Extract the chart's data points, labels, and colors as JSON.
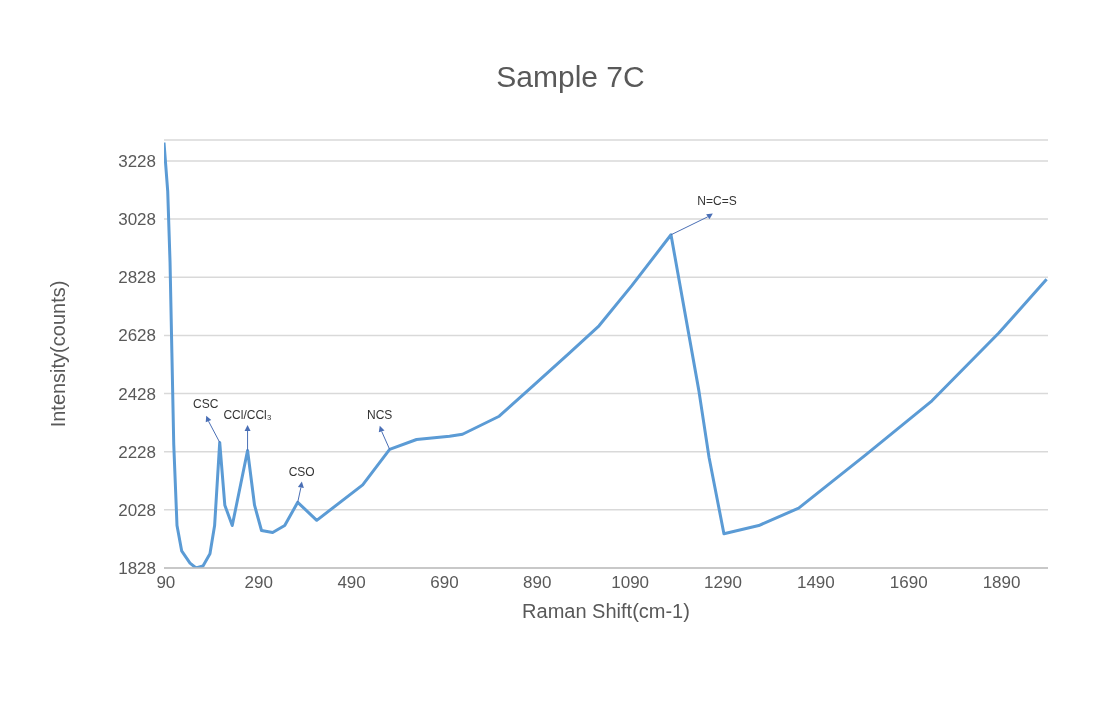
{
  "chart_data": {
    "type": "line",
    "title": "Sample 7C",
    "xlabel": "Raman Shift(cm-1)",
    "ylabel": "Intensity(counts)",
    "x": [
      86,
      94,
      99,
      103,
      107,
      114,
      124,
      142,
      155,
      170,
      185,
      195,
      206,
      217,
      233,
      266,
      281,
      296,
      320,
      346,
      374,
      415,
      514,
      572,
      630,
      701,
      729,
      808,
      879,
      959,
      1023,
      1094,
      1178,
      1238,
      1260,
      1292,
      1367,
      1453,
      1598,
      1740,
      1884,
      1987
    ],
    "values": [
      3291,
      3124,
      2880,
      2567,
      2253,
      1974,
      1887,
      1845,
      1828,
      1835,
      1877,
      1974,
      2260,
      2044,
      1974,
      2232,
      2044,
      1957,
      1950,
      1974,
      2054,
      1992,
      2114,
      2236,
      2270,
      2281,
      2288,
      2350,
      2452,
      2567,
      2661,
      2800,
      2974,
      2438,
      2208,
      1946,
      1974,
      2034,
      2218,
      2403,
      2636,
      2821
    ],
    "color": "#5b9bd5",
    "xlim": [
      86,
      1990
    ],
    "xticks": [
      90,
      290,
      490,
      690,
      890,
      1090,
      1290,
      1490,
      1690,
      1890
    ],
    "ylim": [
      1828,
      3300
    ],
    "yticks": [
      1828,
      2028,
      2228,
      2428,
      2628,
      2828,
      3028,
      3228
    ],
    "grid": "y",
    "marker": "none",
    "line_style": "solid",
    "legend": false,
    "annotations": [
      {
        "text": "CSC",
        "x": 206,
        "y": 2260
      },
      {
        "text": "CCl/CCl₃",
        "x": 266,
        "y": 2232
      },
      {
        "text": "CSO",
        "x": 374,
        "y": 2054
      },
      {
        "text": "NCS",
        "x": 572,
        "y": 2236
      },
      {
        "text": "N=C=S",
        "x": 1178,
        "y": 2974
      }
    ]
  }
}
